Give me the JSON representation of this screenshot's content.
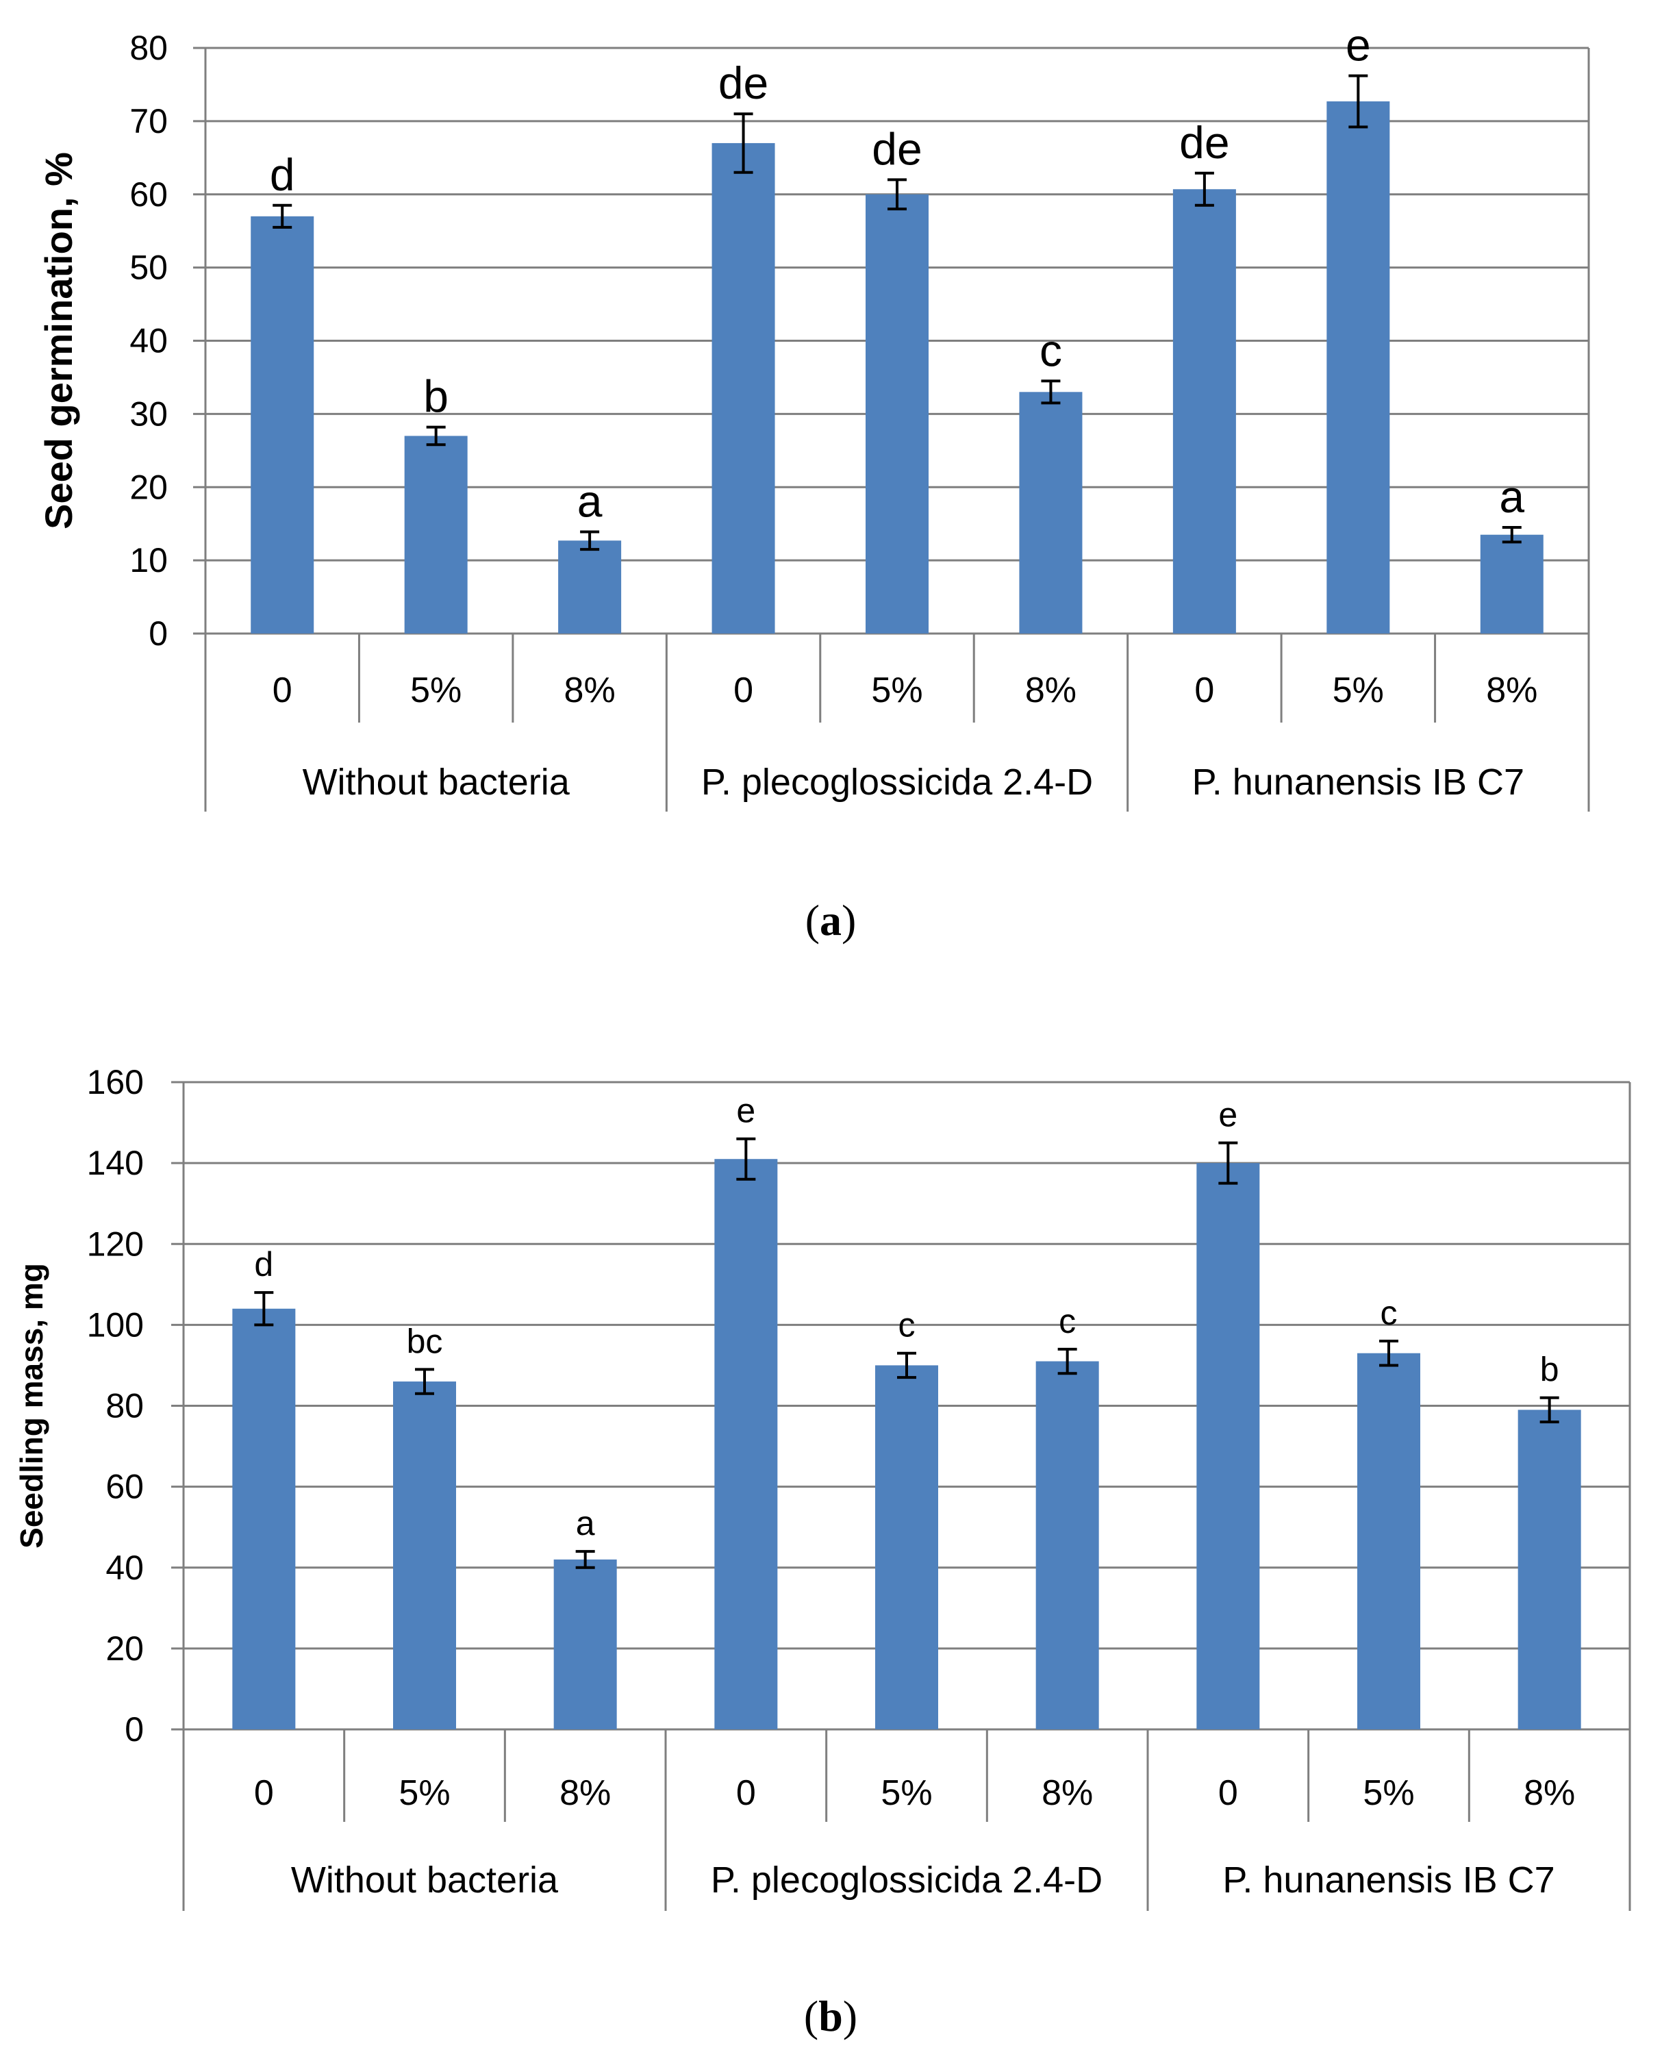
{
  "chart_data": [
    {
      "type": "bar",
      "panel": "a",
      "ylabel": "Seed germination, %",
      "xlabel": "",
      "ylim": [
        0,
        80
      ],
      "yticks": [
        0,
        10,
        20,
        30,
        40,
        50,
        60,
        70,
        80
      ],
      "categories": [
        "0",
        "5%",
        "8%",
        "0",
        "5%",
        "8%",
        "0",
        "5%",
        "8%"
      ],
      "groups": [
        "Without bacteria",
        "P. plecoglossicida 2.4-D",
        "P. hunanensis IB C7"
      ],
      "values": [
        57,
        27,
        12.7,
        67,
        60,
        33,
        60.7,
        72.7,
        13.5
      ],
      "errors": [
        1.5,
        1.2,
        1.2,
        4,
        2,
        1.5,
        2.2,
        3.5,
        1
      ],
      "letters": [
        "d",
        "b",
        "a",
        "de",
        "de",
        "c",
        "de",
        "e",
        "a"
      ],
      "grid": true,
      "color": "#4f81bd"
    },
    {
      "type": "bar",
      "panel": "b",
      "ylabel": "Seedling mass, mg",
      "xlabel": "",
      "ylim": [
        0,
        160
      ],
      "yticks": [
        0,
        20,
        40,
        60,
        80,
        100,
        120,
        140,
        160
      ],
      "categories": [
        "0",
        "5%",
        "8%",
        "0",
        "5%",
        "8%",
        "0",
        "5%",
        "8%"
      ],
      "groups": [
        "Without bacteria",
        "P. plecoglossicida 2.4-D",
        "P. hunanensis IB C7"
      ],
      "values": [
        104,
        86,
        42,
        141,
        90,
        91,
        140,
        93,
        79
      ],
      "errors": [
        4,
        3,
        2,
        5,
        3,
        3,
        5,
        3,
        3
      ],
      "letters": [
        "d",
        "bc",
        "a",
        "e",
        "c",
        "c",
        "e",
        "c",
        "b"
      ],
      "grid": true,
      "color": "#4f81bd"
    }
  ],
  "panel_labels": {
    "a": "(a)",
    "b": "(b)"
  }
}
